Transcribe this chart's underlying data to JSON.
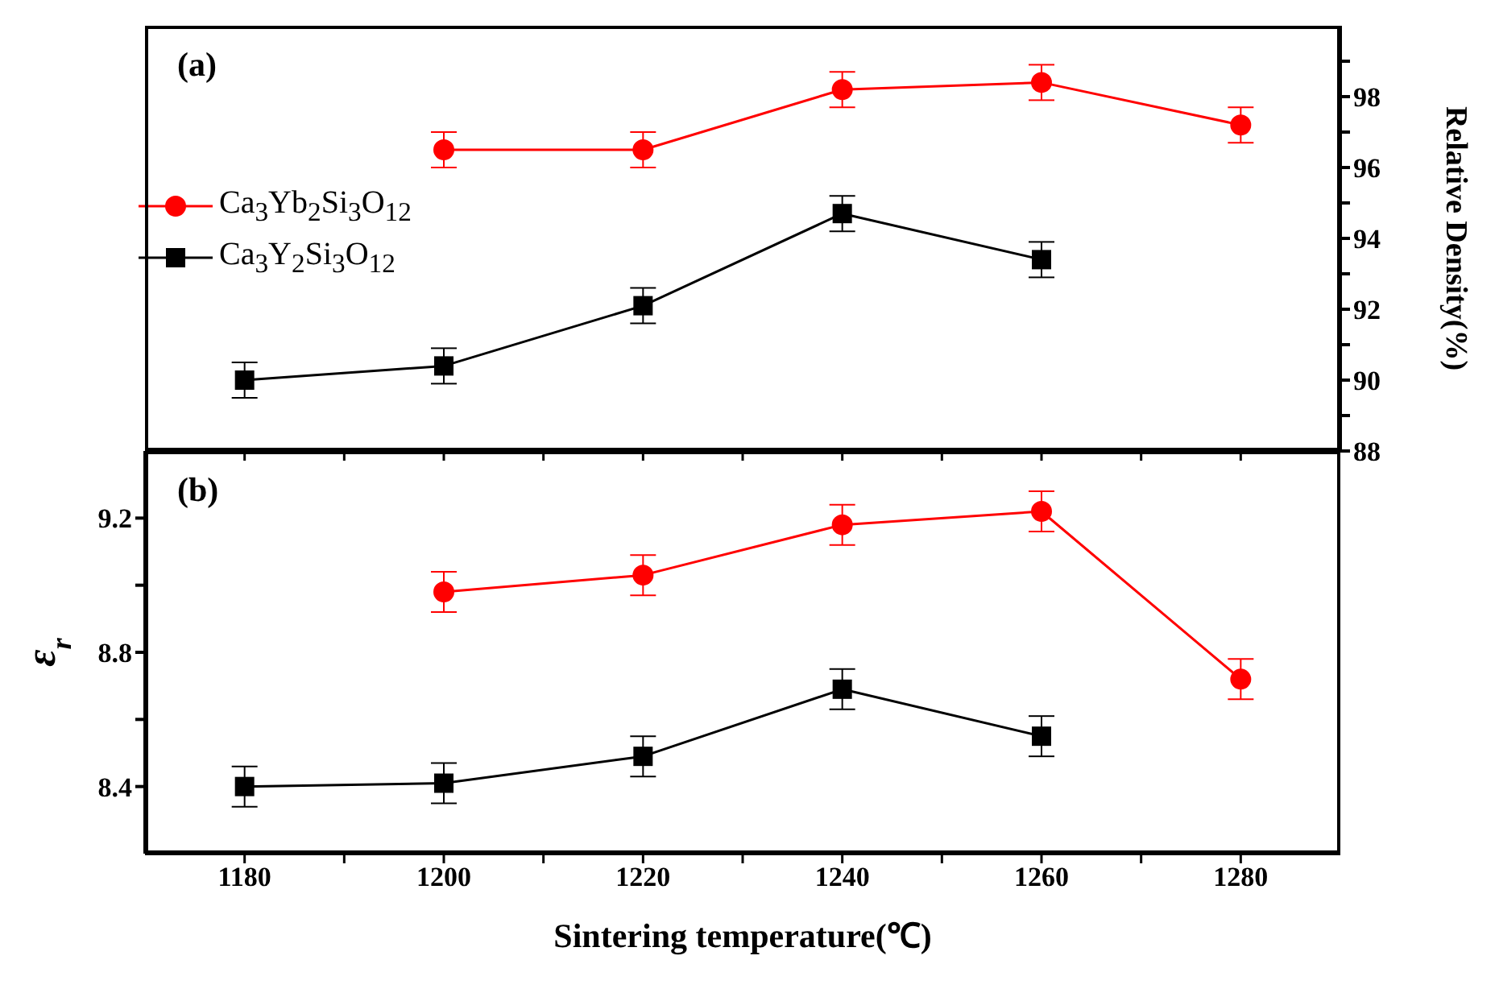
{
  "chart_data": [
    {
      "type": "line",
      "annotations": [
        "(a)"
      ],
      "y2label": "Relative Density(%)",
      "xlim": [
        1170,
        1290
      ],
      "xticks": [
        {
          "value": 1180,
          "label": null
        },
        {
          "value": 1190,
          "label": null
        },
        {
          "value": 1200,
          "label": null
        },
        {
          "value": 1210,
          "label": null
        },
        {
          "value": 1220,
          "label": null
        },
        {
          "value": 1230,
          "label": null
        },
        {
          "value": 1240,
          "label": null
        },
        {
          "value": 1250,
          "label": null
        },
        {
          "value": 1260,
          "label": null
        },
        {
          "value": 1270,
          "label": null
        },
        {
          "value": 1280,
          "label": null
        }
      ],
      "y2lim": [
        88,
        100
      ],
      "y2ticks": [
        88,
        {
          "value": 89,
          "label": null
        },
        90,
        {
          "value": 91,
          "label": null
        },
        92,
        {
          "value": 93,
          "label": null
        },
        94,
        {
          "value": 95,
          "label": null
        },
        96,
        {
          "value": 97,
          "label": null
        },
        98,
        {
          "value": 99,
          "label": null
        }
      ],
      "tick_labels": "y",
      "legend": "left",
      "grid": false,
      "series": [
        {
          "name": "Ca$_{3}$Yb$_{2}$Si$_{3}$O$_{12}$",
          "color": "#ff0000",
          "marker": "circle",
          "axis": "y2",
          "x": [
            1200,
            1220,
            1240,
            1260,
            1280
          ],
          "values": [
            96.5,
            96.5,
            98.2,
            98.4,
            97.2
          ],
          "errors": [
            0.5,
            0.5,
            0.5,
            0.5,
            0.5
          ]
        },
        {
          "name": "Ca$_{3}$Y$_{2}$Si$_{3}$O$_{12}$",
          "color": "#000000",
          "marker": "square",
          "axis": "y2",
          "x": [
            1180,
            1200,
            1220,
            1240,
            1260
          ],
          "values": [
            90.0,
            90.4,
            92.1,
            94.7,
            93.4
          ],
          "errors": [
            0.5,
            0.5,
            0.5,
            0.5,
            0.5
          ]
        }
      ]
    },
    {
      "type": "line",
      "annotations": [
        "(b)"
      ],
      "xlabel": "Sintering temperature(℃)",
      "ylabel": "ε$_{r}$",
      "xlim": [
        1170,
        1290
      ],
      "xticks": [
        1180,
        {
          "value": 1190,
          "label": null
        },
        1200,
        {
          "value": 1210,
          "label": null
        },
        1220,
        {
          "value": 1230,
          "label": null
        },
        1240,
        {
          "value": 1250,
          "label": null
        },
        1260,
        {
          "value": 1270,
          "label": null
        },
        1280
      ],
      "ylim": [
        8.2,
        9.4
      ],
      "yticks": [
        8.4,
        {
          "value": 8.6,
          "label": null
        },
        8.8,
        {
          "value": 9.0,
          "label": null
        },
        9.2
      ],
      "grid": false,
      "series": [
        {
          "color": "#ff0000",
          "marker": "circle",
          "x": [
            1200,
            1220,
            1240,
            1260,
            1280
          ],
          "values": [
            8.98,
            9.03,
            9.18,
            9.22,
            8.72
          ],
          "errors": [
            0.06,
            0.06,
            0.06,
            0.06,
            0.06
          ]
        },
        {
          "color": "#000000",
          "marker": "square",
          "x": [
            1180,
            1200,
            1220,
            1240,
            1260
          ],
          "values": [
            8.4,
            8.41,
            8.49,
            8.69,
            8.55
          ],
          "errors": [
            0.06,
            0.06,
            0.06,
            0.06,
            0.06
          ]
        }
      ]
    }
  ]
}
